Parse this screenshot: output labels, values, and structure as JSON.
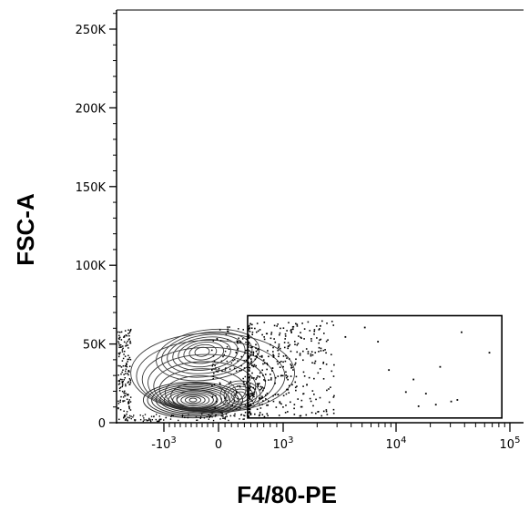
{
  "chart_data": {
    "type": "scatter",
    "subtype": "flow-cytometry contour plot with outliers",
    "title": "",
    "xlabel": "F4/80-PE",
    "ylabel": "FSC-A",
    "x_scale": "biexponential",
    "xlim": [
      -2000,
      100000
    ],
    "ylim": [
      0,
      262144
    ],
    "x_ticks": [
      {
        "value": -1000,
        "base": "-10",
        "exp": "3"
      },
      {
        "value": 0,
        "label": "0"
      },
      {
        "value": 1000,
        "base": "10",
        "exp": "3"
      },
      {
        "value": 10000,
        "base": "10",
        "exp": "4"
      },
      {
        "value": 100000,
        "base": "10",
        "exp": "5"
      }
    ],
    "y_ticks": [
      {
        "value": 0,
        "label": "0"
      },
      {
        "value": 50000,
        "label": "50K"
      },
      {
        "value": 100000,
        "label": "100K"
      },
      {
        "value": 150000,
        "label": "150K"
      },
      {
        "value": 200000,
        "label": "200K"
      },
      {
        "value": 250000,
        "label": "250K"
      }
    ],
    "grid": false,
    "legend": "none",
    "gate": {
      "shape": "rectangle",
      "x": [
        450,
        85000
      ],
      "y": [
        3000,
        68000
      ]
    },
    "main_population": {
      "center_x": -400,
      "center_y": 15000,
      "secondary_center_y": 45000
    },
    "outliers": [
      {
        "x": 1200,
        "y": 60000
      },
      {
        "x": 2100,
        "y": 62000
      },
      {
        "x": 3500,
        "y": 55000
      },
      {
        "x": 5200,
        "y": 61000
      },
      {
        "x": 6800,
        "y": 52000
      },
      {
        "x": 8500,
        "y": 34000
      },
      {
        "x": 12000,
        "y": 20000
      },
      {
        "x": 14000,
        "y": 28000
      },
      {
        "x": 15500,
        "y": 11000
      },
      {
        "x": 18000,
        "y": 19000
      },
      {
        "x": 22000,
        "y": 12000
      },
      {
        "x": 24000,
        "y": 36000
      },
      {
        "x": 30000,
        "y": 14000
      },
      {
        "x": 34000,
        "y": 15000
      },
      {
        "x": 37000,
        "y": 58000
      },
      {
        "x": 65000,
        "y": 45000
      }
    ],
    "colors": {
      "axis": "#000000",
      "contour": "#3a3a3a",
      "dots": "#000000",
      "background": "#ffffff"
    }
  }
}
